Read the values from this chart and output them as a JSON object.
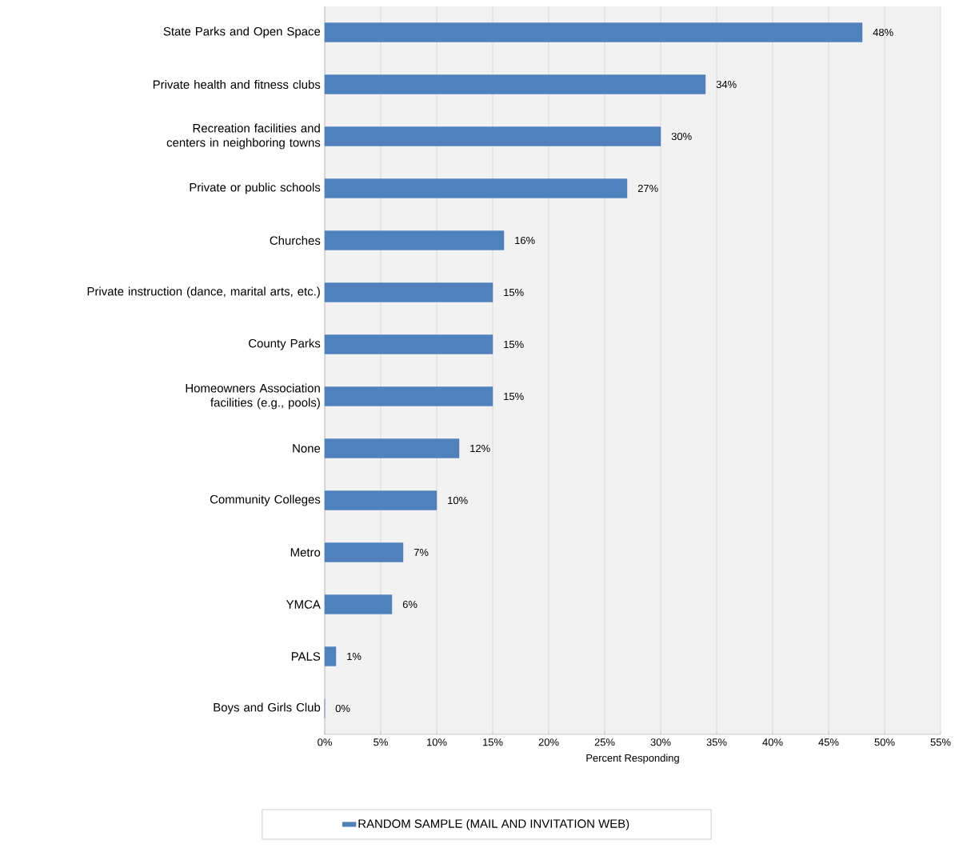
{
  "chart_data": {
    "type": "bar",
    "orientation": "horizontal",
    "xlabel": "Percent Responding",
    "categories": [
      "State Parks and Open Space",
      "Private health and fitness clubs",
      "Recreation facilities and centers in neighboring towns",
      "Private or public schools",
      "Churches",
      "Private instruction (dance, marital arts, etc.)",
      "County Parks",
      "Homeowners Association facilities (e.g., pools)",
      "None",
      "Community Colleges",
      "Metro",
      "YMCA",
      "PALS",
      "Boys and Girls Club"
    ],
    "series": [
      {
        "name": "RANDOM SAMPLE (MAIL AND INVITATION  WEB)",
        "color": "#4f81bd",
        "values": [
          48,
          34,
          30,
          27,
          16,
          15,
          15,
          15,
          12,
          10,
          7,
          6,
          1,
          0
        ],
        "value_labels": [
          "48%",
          "34%",
          "30%",
          "27%",
          "16%",
          "15%",
          "15%",
          "15%",
          "12%",
          "10%",
          "7%",
          "6%",
          "1%",
          "0%"
        ]
      }
    ],
    "xlim": [
      0,
      55
    ],
    "xticks": [
      {
        "value": 0,
        "label": "0%"
      },
      {
        "value": 5,
        "label": "5%"
      },
      {
        "value": 10,
        "label": "10%"
      },
      {
        "value": 15,
        "label": "15%"
      },
      {
        "value": 20,
        "label": "20%"
      },
      {
        "value": 25,
        "label": "25%"
      },
      {
        "value": 30,
        "label": "30%"
      },
      {
        "value": 35,
        "label": "35%"
      },
      {
        "value": 40,
        "label": "40%"
      },
      {
        "value": 45,
        "label": "45%"
      },
      {
        "value": 50,
        "label": "50%"
      },
      {
        "value": 55,
        "label": "55%"
      }
    ],
    "grid": "x",
    "legend": "bottom"
  }
}
